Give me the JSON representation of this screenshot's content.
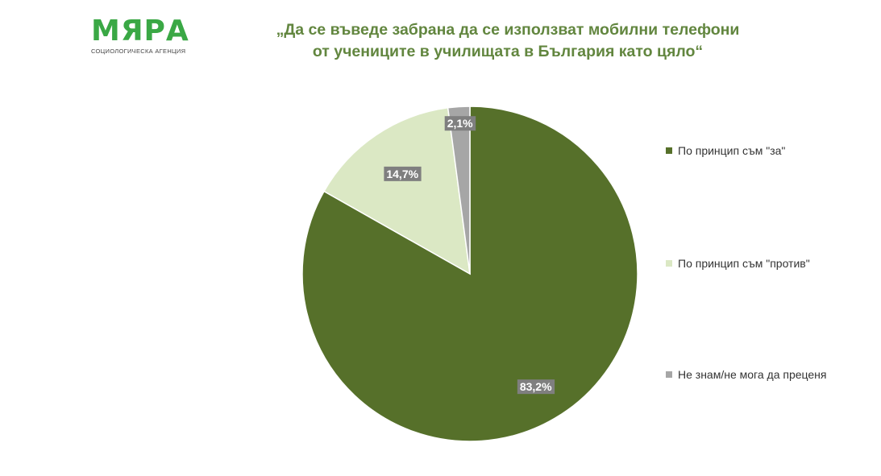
{
  "logo": {
    "name": "МЯРА",
    "tagline": "СОЦИОЛОГИЧЕСКА АГЕНЦИЯ"
  },
  "title_lines": [
    "„Да се въведе забрана да се използват мобилни телефони",
    "от учениците в училищата в България като цяло“"
  ],
  "colors": {
    "brand": "#3aa845",
    "title": "#62863f",
    "label_bg": "#7f7f7f"
  },
  "chart_data": {
    "type": "pie",
    "title": "„Да се въведе забрана да се използват мобилни телефони от учениците в училищата в България като цяло“",
    "categories": [
      "По принцип съм \"за\"",
      "По принцип съм \"против\"",
      "Не знам/не мога да преценя"
    ],
    "values": [
      83.2,
      14.7,
      2.1
    ],
    "data_labels": [
      "83,2%",
      "14,7%",
      "2,1%"
    ],
    "colors": [
      "#56702a",
      "#dbe8c4",
      "#a6a6a6"
    ],
    "start_angle_deg": 0,
    "direction": "clockwise",
    "legend_position": "right"
  }
}
